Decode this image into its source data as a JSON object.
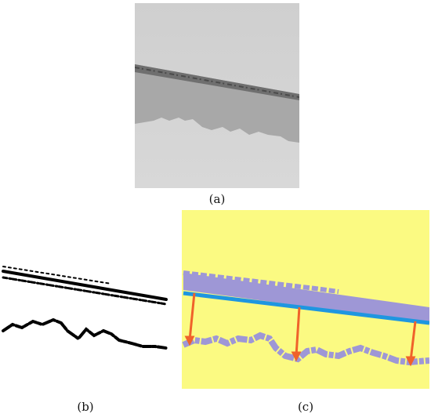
{
  "captions": {
    "a": "(a)",
    "b": "(b)",
    "c": "(c)"
  },
  "colors": {
    "background_c": "#fbfa82",
    "layer_purple": "#9e97d6",
    "fit_line_blue": "#1f96e0",
    "arrow_orange": "#f0622a"
  }
}
